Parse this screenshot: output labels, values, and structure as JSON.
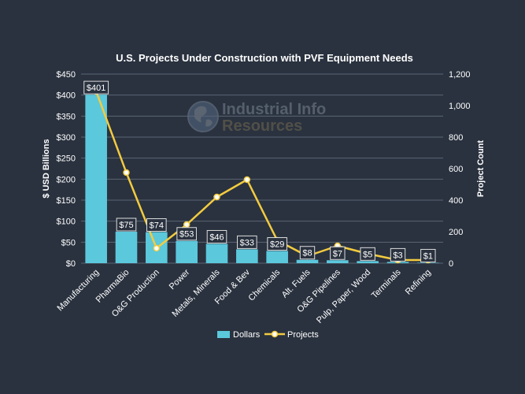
{
  "chart_data": {
    "type": "bar",
    "title": "U.S. Projects Under Construction with PVF Equipment Needs",
    "ylabel": "$ USD Billions",
    "y2label": "Project Count",
    "ylim": [
      0,
      450
    ],
    "y2lim": [
      0,
      1200
    ],
    "yticks": [
      0,
      50,
      100,
      150,
      200,
      250,
      300,
      350,
      400,
      450
    ],
    "y2ticks": [
      0,
      200,
      400,
      600,
      800,
      1000,
      1200
    ],
    "yprefix": "$",
    "categories": [
      "Manufacturing",
      "PharmaBio",
      "O&G Production",
      "Power",
      "Metals, Minerals",
      "Food & Bev",
      "Chemicals",
      "Alt. Fuels",
      "O&G Pipelines",
      "Pulp, Paper, Wood",
      "Terminals",
      "Refining"
    ],
    "series": [
      {
        "name": "Dollars",
        "type": "bar",
        "axis": "left",
        "color": "#5bc8dc",
        "values": [
          401,
          75,
          74,
          53,
          46,
          33,
          29,
          8,
          7,
          5,
          3,
          1
        ],
        "labels": [
          "$401",
          "$75",
          "$74",
          "$53",
          "$46",
          "$33",
          "$29",
          "$8",
          "$7",
          "$5",
          "$3",
          "$1"
        ]
      },
      {
        "name": "Projects",
        "type": "line",
        "axis": "right",
        "color": "#f2cb3f",
        "values": [
          1090,
          575,
          95,
          245,
          420,
          530,
          145,
          45,
          110,
          60,
          20,
          20
        ]
      }
    ],
    "legend": "bottom-center",
    "grid": true
  },
  "watermark": {
    "line1": "Industrial Info",
    "line2": "Resources"
  }
}
